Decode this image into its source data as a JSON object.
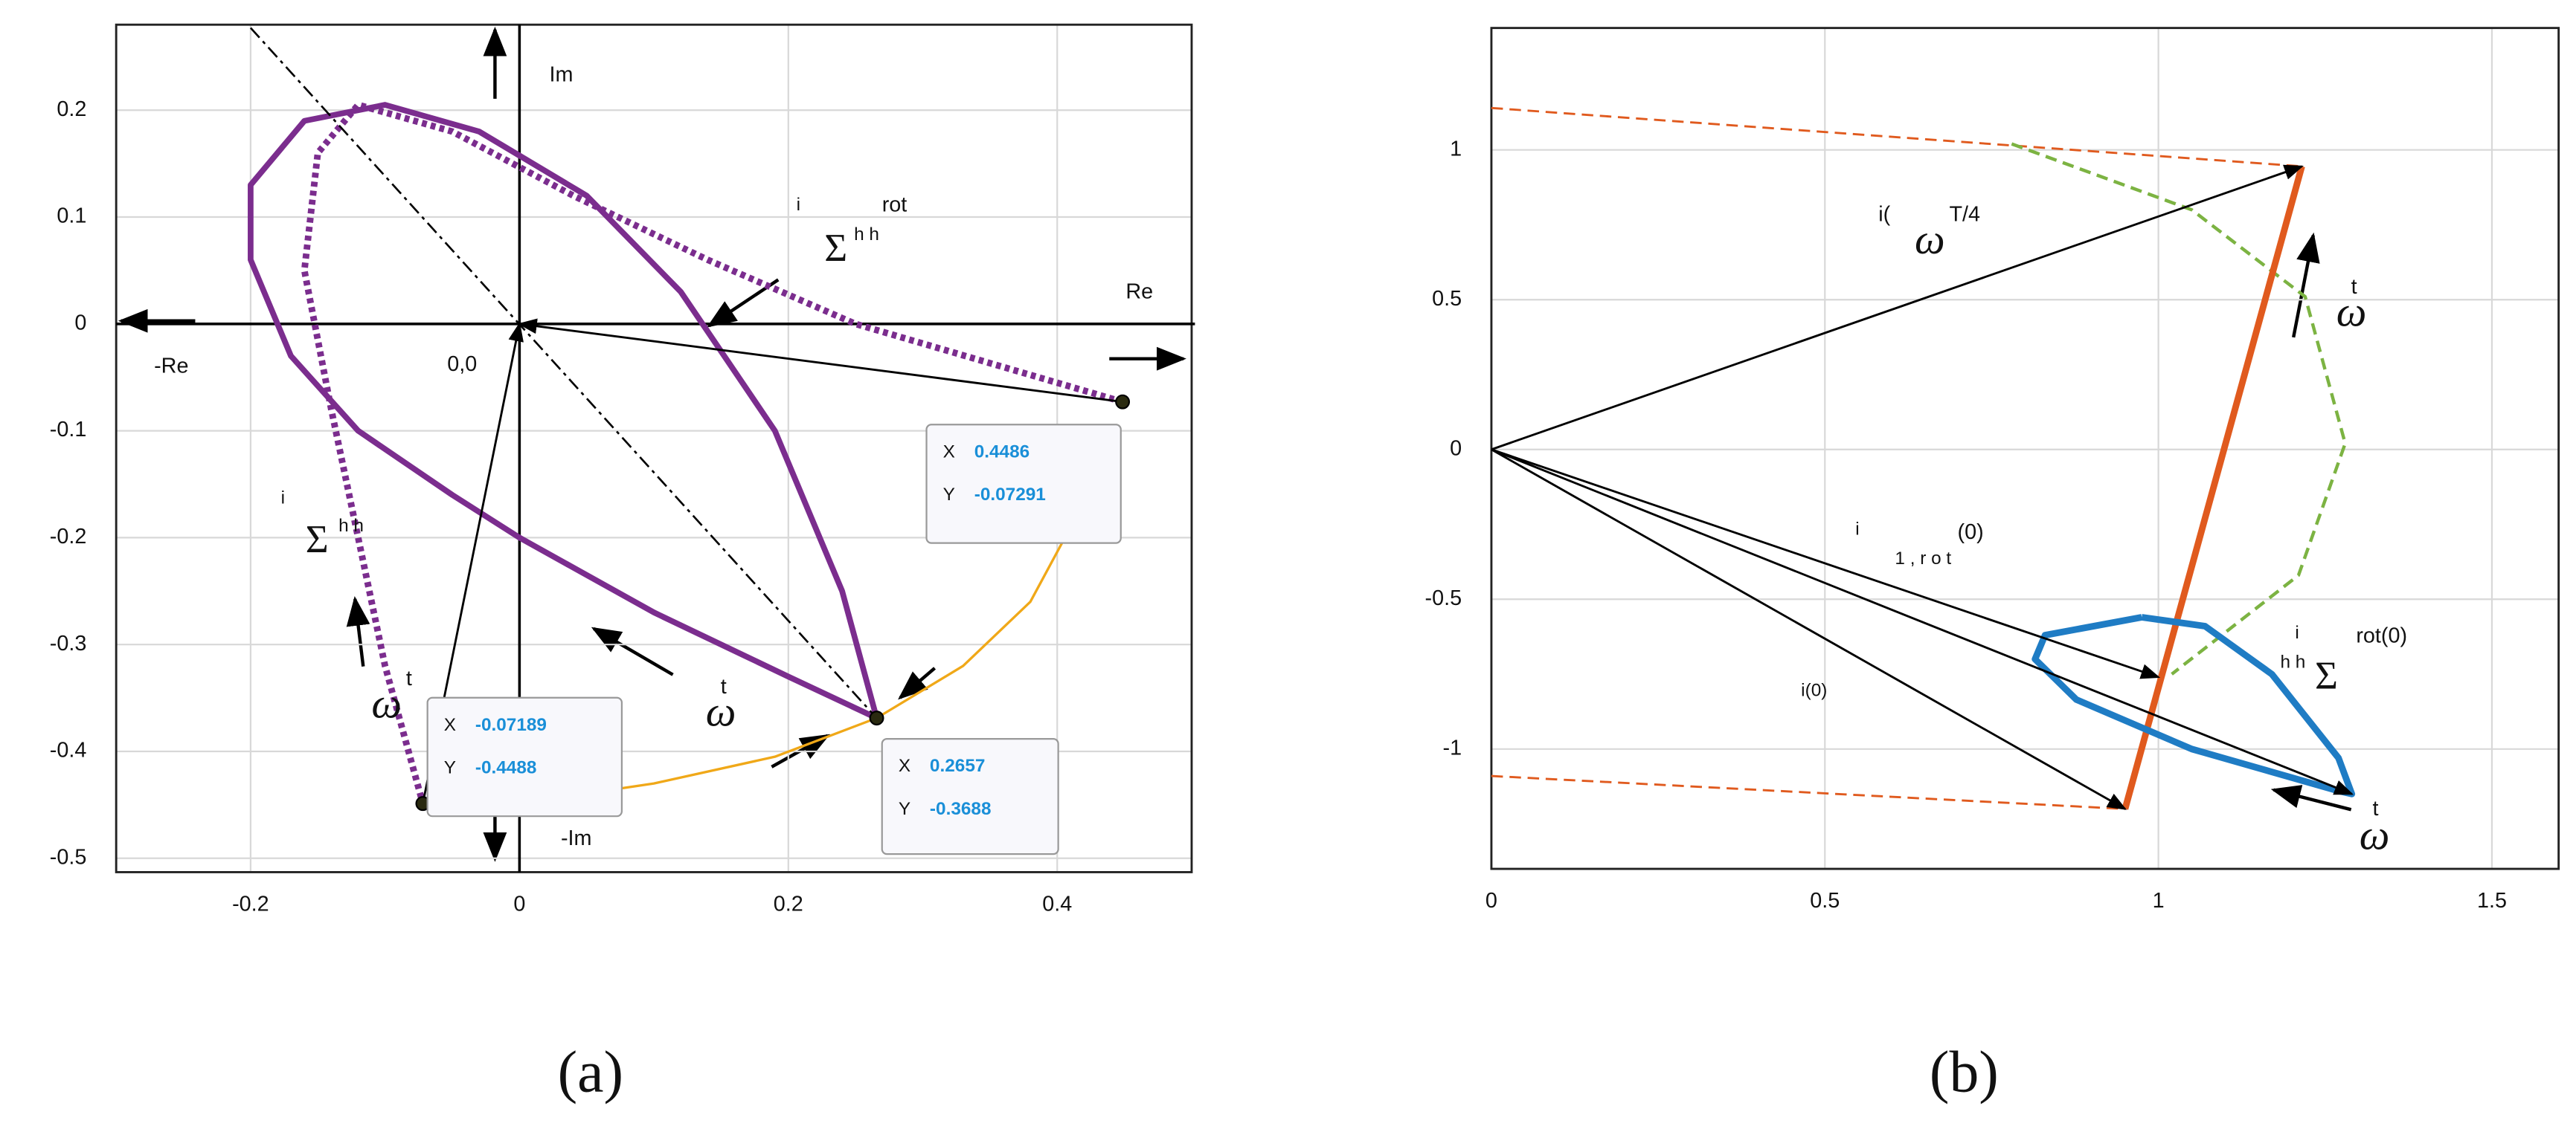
{
  "chart_data": [
    {
      "type": "line",
      "label": "(a)",
      "xlim": [
        -0.3,
        0.5
      ],
      "ylim": [
        -0.513,
        0.28
      ],
      "xticks": [
        -0.2,
        0,
        0.2,
        0.4
      ],
      "yticks": [
        -0.5,
        -0.4,
        -0.3,
        -0.2,
        -0.1,
        0,
        0.1,
        0.2
      ],
      "grid": true,
      "series": [
        {
          "color": "#7b2d8e",
          "style": "solid",
          "width": 3.5,
          "x": [
            0.2657,
            0.24,
            0.19,
            0.12,
            0.05,
            -0.03,
            -0.1,
            -0.16,
            -0.2,
            -0.2,
            -0.17,
            -0.12,
            -0.05,
            0,
            0.1,
            0.2,
            0.2657
          ],
          "y": [
            -0.3688,
            -0.25,
            -0.1,
            0.03,
            0.12,
            0.18,
            0.205,
            0.19,
            0.13,
            0.06,
            -0.03,
            -0.1,
            -0.16,
            -0.2,
            -0.27,
            -0.33,
            -0.3688
          ]
        },
        {
          "color": "#7b2d8e",
          "style": "dotted",
          "width": 4,
          "x": [
            0.4486,
            0.25,
            0.14,
            0.04,
            -0.05,
            -0.12,
            -0.15,
            -0.16,
            -0.14,
            -0.12,
            -0.1,
            -0.07189
          ],
          "y": [
            -0.07291,
            0,
            0.06,
            0.12,
            0.18,
            0.205,
            0.16,
            0.05,
            -0.08,
            -0.2,
            -0.32,
            -0.4488
          ]
        },
        {
          "color": "#f0a818",
          "style": "solid",
          "width": 1.5,
          "x": [
            -0.07189,
            0.02,
            0.1,
            0.19,
            0.2657,
            0.33,
            0.38,
            0.41
          ],
          "y": [
            -0.4488,
            -0.445,
            -0.43,
            -0.405,
            -0.3688,
            -0.32,
            -0.26,
            -0.19
          ]
        },
        {
          "color": "#000000",
          "style": "dashdot",
          "width": 1.2,
          "x": [
            -0.2,
            0.2657
          ],
          "y": [
            0.277,
            -0.3688
          ]
        }
      ],
      "vectors": [
        {
          "x": [
            0.4486,
            0
          ],
          "y": [
            -0.07291,
            0
          ]
        },
        {
          "x": [
            -0.07189,
            0
          ],
          "y": [
            -0.4488,
            0
          ]
        }
      ],
      "datatips": [
        {
          "x": 0.4486,
          "y": -0.07291
        },
        {
          "x": -0.07189,
          "y": -0.4488
        },
        {
          "x": 0.2657,
          "y": -0.3688
        }
      ],
      "datatip_labels": [
        "X",
        "Y"
      ],
      "annotations": [
        "Im",
        "-Im",
        "Re",
        "-Re",
        "0,0",
        "i",
        "Σ",
        "h h",
        "rot",
        "i",
        "Σ",
        "h h",
        "ω",
        "t",
        "ω",
        "t"
      ]
    },
    {
      "type": "line",
      "label": "(b)",
      "xlim": [
        0,
        1.6
      ],
      "ylim": [
        -1.4,
        1.407
      ],
      "xticks": [
        0,
        0.5,
        1,
        1.5
      ],
      "yticks": [
        -1,
        -0.5,
        0,
        0.5,
        1
      ],
      "grid": true,
      "series": [
        {
          "color": "#e05a1e",
          "style": "dashed",
          "width": 1.3,
          "x": [
            0,
            1.215
          ],
          "y": [
            1.14,
            0.945
          ]
        },
        {
          "color": "#e05a1e",
          "style": "dashed",
          "width": 1.3,
          "x": [
            0,
            0.95
          ],
          "y": [
            -1.09,
            -1.2
          ]
        },
        {
          "color": "#7cb342",
          "style": "dashed",
          "width": 2,
          "x": [
            0.78,
            1.05,
            1.22,
            1.28,
            1.21,
            1.02
          ],
          "y": [
            1.02,
            0.8,
            0.51,
            0.02,
            -0.42,
            -0.75
          ]
        },
        {
          "color": "#e05a1e",
          "style": "solid",
          "width": 4,
          "x": [
            0.95,
            1.215
          ],
          "y": [
            -1.2,
            0.945
          ]
        },
        {
          "color": "#1f7cc4",
          "style": "solid",
          "width": 4,
          "x": [
            0.975,
            0.83,
            0.815,
            0.877,
            1.05,
            1.27,
            1.29,
            1.27,
            1.17,
            1.07,
            0.975
          ],
          "y": [
            -0.56,
            -0.62,
            -0.7,
            -0.835,
            -1.0,
            -1.14,
            -1.15,
            -1.03,
            -0.75,
            -0.59,
            -0.56
          ]
        }
      ],
      "vectors": [
        {
          "x": [
            0,
            1.215
          ],
          "y": [
            0,
            0.945
          ]
        },
        {
          "x": [
            0,
            0.95
          ],
          "y": [
            0,
            -1.2
          ]
        },
        {
          "x": [
            0,
            1.29
          ],
          "y": [
            0,
            -1.15
          ]
        },
        {
          "x": [
            0,
            1.0
          ],
          "y": [
            0,
            -0.76
          ]
        }
      ],
      "annotations": [
        "i(",
        "ω",
        "T/4",
        "ω",
        "t",
        "i",
        "1 , r o t",
        "(0)",
        "i(0)",
        "i",
        "rot(0)",
        "Σ",
        "h h",
        "ω",
        "t"
      ]
    }
  ]
}
